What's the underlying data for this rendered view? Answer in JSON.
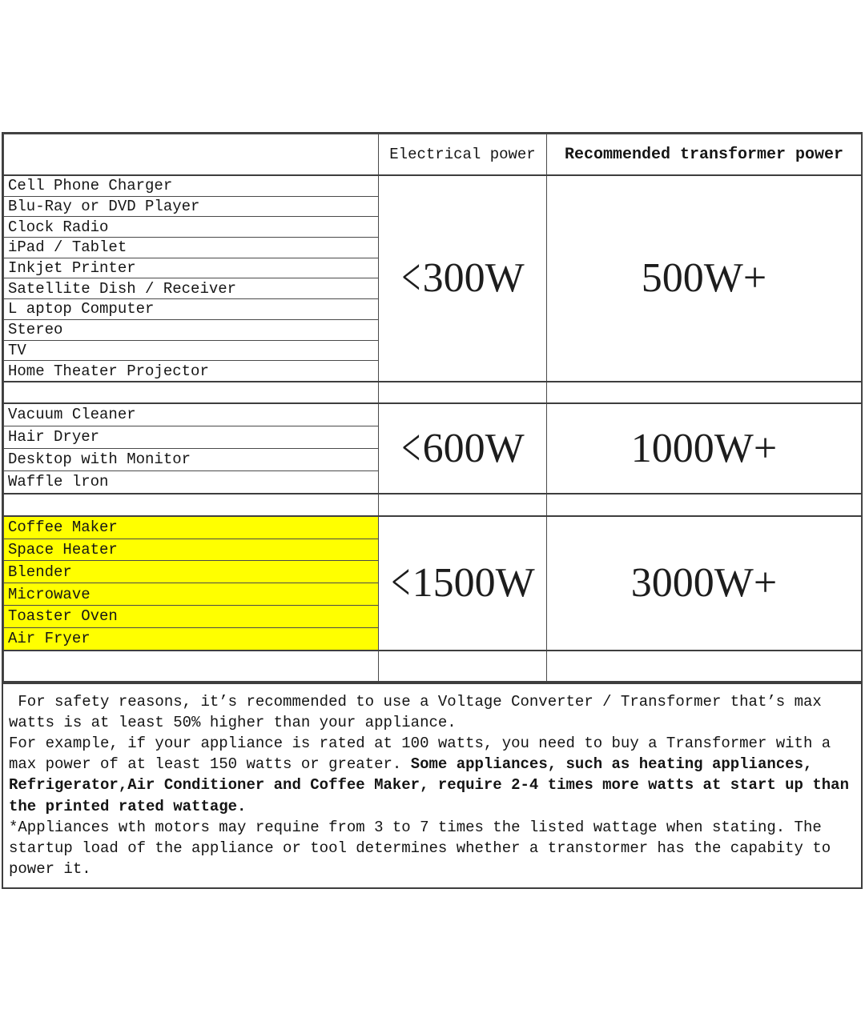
{
  "table": {
    "headers": {
      "appliance": "",
      "electrical": "Electrical power",
      "transformer": "Recommended transformer power"
    },
    "highlight_color": "#ffff00",
    "groups": [
      {
        "appliances": [
          "Cell Phone Charger",
          "Blu-Ray or DVD Player",
          "Clock Radio",
          "iPad / Tablet",
          "Inkjet Printer",
          "Satellite Dish / Receiver",
          "L aptop Computer",
          "Stereo",
          "TV",
          "Home Theater Projector"
        ],
        "electrical_power": "<300W",
        "transformer_power": "500W+",
        "highlight": false
      },
      {
        "appliances": [
          "Vacuum Cleaner",
          "Hair Dryer",
          "Desktop with Monitor",
          "Waffle lron"
        ],
        "electrical_power": "<600W",
        "transformer_power": "1000W+",
        "highlight": false
      },
      {
        "appliances": [
          "Coffee Maker",
          "Space Heater",
          "Blender",
          "Microwave",
          "Toaster Oven",
          "Air Fryer"
        ],
        "electrical_power": "<1500W",
        "transformer_power": "3000W+",
        "highlight": true
      }
    ]
  },
  "footer": {
    "paragraphs": [
      {
        "segments": [
          {
            "text": " For safety reasons, it’s recommended to use a Voltage Converter / Transformer that’s max watts is at least 50% higher than your appliance.",
            "bold": false
          }
        ]
      },
      {
        "segments": [
          {
            "text": "For example, if your appliance is rated at 100 watts, you need to buy a Transformer with a max power of at least 150 watts or greater. ",
            "bold": false
          },
          {
            "text": "Some appliances, such as heating appliances, Refrigerator,Air Conditioner and Coffee Maker, require 2-4 times more watts at start up than the printed rated wattage.",
            "bold": true
          }
        ]
      },
      {
        "segments": [
          {
            "text": "*Appliances wth motors may requine from 3 to 7 times the listed wattage when stating. The startup load of the appliance or tool determines whether a transtormer has the capabity to power it.",
            "bold": false
          }
        ]
      }
    ]
  }
}
